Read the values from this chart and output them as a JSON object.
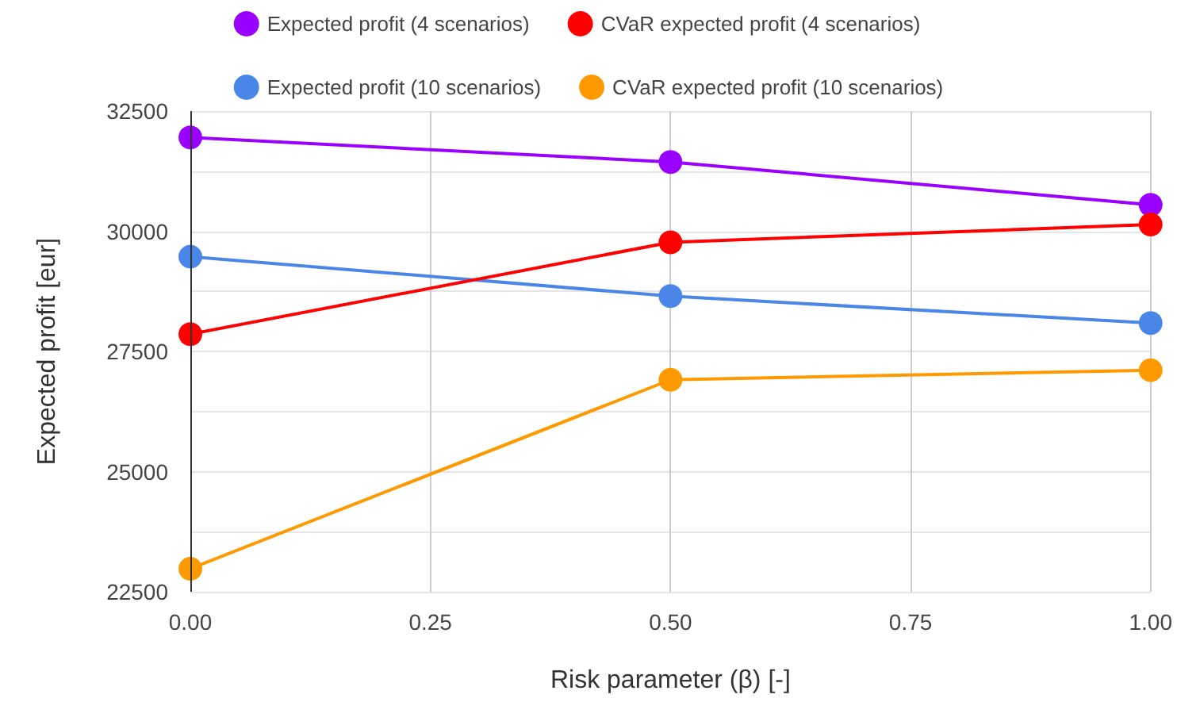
{
  "chart_data": {
    "type": "line",
    "xlabel": "Risk parameter (β) [-]",
    "ylabel": "Expected profit [eur]",
    "x": [
      0,
      0.5,
      1
    ],
    "series": [
      {
        "name": "Expected profit (4 scenarios)",
        "color": "#9900ff",
        "values": [
          31950,
          31440,
          30550
        ]
      },
      {
        "name": "Expected profit (10 scenarios)",
        "color": "#4a86e8",
        "values": [
          29470,
          28650,
          28090
        ]
      },
      {
        "name": "CVaR expected profit (4 scenarios)",
        "color": "#ff0000",
        "values": [
          27860,
          29770,
          30140
        ]
      },
      {
        "name": "CVaR expected profit (10 scenarios)",
        "color": "#ff9900",
        "values": [
          22980,
          26910,
          27110
        ]
      }
    ],
    "xlim": [
      0,
      1
    ],
    "xticks": [
      {
        "value": 0,
        "label": "0.00"
      },
      {
        "value": 0.25,
        "label": "0.25"
      },
      {
        "value": 0.5,
        "label": "0.50"
      },
      {
        "value": 0.75,
        "label": "0.75"
      },
      {
        "value": 1,
        "label": "1.00"
      }
    ],
    "ylim": [
      22500,
      32500
    ],
    "yticks": [
      22500,
      {
        "value": 23750,
        "label": null
      },
      25000,
      {
        "value": 26250,
        "label": null
      },
      27500,
      {
        "value": 28750,
        "label": null
      },
      30000,
      {
        "value": 31250,
        "label": null
      },
      32500
    ],
    "grid": true,
    "legend": "top",
    "marker": "circle",
    "line_style": "solid"
  }
}
